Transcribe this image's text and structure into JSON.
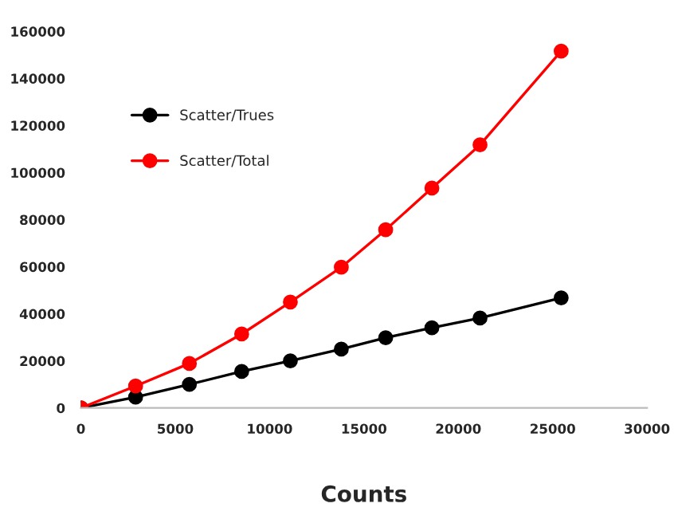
{
  "chart_data": {
    "type": "line",
    "xlabel": "Counts",
    "x": [
      0,
      2900,
      5750,
      8520,
      11100,
      13800,
      16150,
      18600,
      21150,
      25450
    ],
    "series": [
      {
        "name": "Scatter/Trues",
        "color": "#000000",
        "values": [
          0,
          4600,
          10000,
          15500,
          20000,
          25000,
          29800,
          34100,
          38200,
          46800
        ]
      },
      {
        "name": "Scatter/Total",
        "color": "#ff0000",
        "values": [
          0,
          9300,
          18900,
          31400,
          45000,
          59800,
          75700,
          93400,
          111800,
          151600
        ]
      }
    ],
    "xlim": [
      0,
      30000
    ],
    "xticks": [
      0,
      5000,
      10000,
      15000,
      20000,
      25000,
      30000
    ],
    "ylim": [
      0,
      160000
    ],
    "yticks": [
      0,
      20000,
      40000,
      60000,
      80000,
      100000,
      120000,
      140000,
      160000
    ],
    "grid": false,
    "legend": "top left",
    "marker": "circle",
    "line_style": "solid"
  }
}
